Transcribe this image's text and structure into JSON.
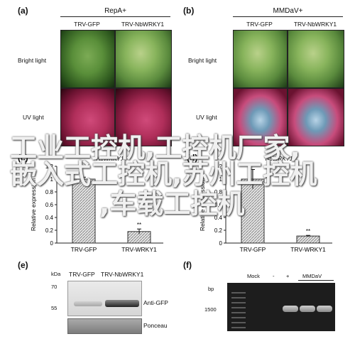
{
  "panels": {
    "a": {
      "letter": "(a)",
      "title": "RepA+",
      "cols": [
        "TRV-GFP",
        "TRV-NbWRKY1"
      ],
      "rows": [
        "Bright light",
        "UV light"
      ]
    },
    "b": {
      "letter": "(b)",
      "title": "MMDaV+",
      "cols": [
        "TRV-GFP",
        "TRV-NbWRKY1"
      ],
      "rows": [
        "Bright light",
        "UV light"
      ]
    },
    "e": {
      "letter": "(e)",
      "kda": "kDa",
      "lanes": [
        "TRV-GFP",
        "TRV-NbWRKY1"
      ],
      "markers": [
        "70",
        "55"
      ],
      "labels": [
        "Anti-GFP",
        "Ponceau"
      ]
    },
    "f": {
      "letter": "(f)",
      "bp": "bp",
      "marker": "1500",
      "lanes": [
        "Mock",
        "-",
        "+"
      ],
      "group": "MMDaV"
    }
  },
  "watermark": {
    "line1": "工业工控机,工控机厂家,",
    "line2": "嵌入式工控机,苏州工控机",
    "line3": ",车载工控机"
  },
  "chart_data": [
    {
      "panel_letter": "(c)",
      "type": "bar",
      "categories": [
        "TRV-GFP",
        "TRV-WRKY1"
      ],
      "values": [
        1.0,
        0.18
      ],
      "errors": [
        0.03,
        0.04
      ],
      "annotations": [
        "",
        "**"
      ],
      "ylabel": "Relative expression",
      "ylim": [
        0,
        1.2
      ],
      "yticks": [
        "0",
        "0.2",
        "0.4",
        "0.6",
        "0.8",
        "1",
        "1.2"
      ],
      "header": "NbWRKY1"
    },
    {
      "panel_letter": "(d)",
      "type": "bar",
      "categories": [
        "TRV-GFP",
        "TRV-WRKY1"
      ],
      "values": [
        1.0,
        0.11
      ],
      "errors": [
        0.15,
        0.01
      ],
      "annotations": [
        "",
        "**"
      ],
      "ylabel": "Relative expression",
      "ylim": [
        0,
        1.2
      ],
      "yticks": [
        "0",
        "0.2",
        "0.4",
        "0.6",
        "0.8",
        "1",
        "1.2"
      ],
      "header": "NbWRKY1"
    }
  ]
}
